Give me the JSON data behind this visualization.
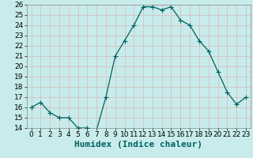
{
  "x": [
    0,
    1,
    2,
    3,
    4,
    5,
    6,
    7,
    8,
    9,
    10,
    11,
    12,
    13,
    14,
    15,
    16,
    17,
    18,
    19,
    20,
    21,
    22,
    23
  ],
  "y": [
    16,
    16.5,
    15.5,
    15,
    15,
    14,
    14,
    13.8,
    17,
    21,
    22.5,
    24,
    25.8,
    25.8,
    25.5,
    25.8,
    24.5,
    24,
    22.5,
    21.5,
    19.5,
    17.5,
    16.3,
    17
  ],
  "line_color": "#006060",
  "marker_color": "#006060",
  "bg_color": "#c8ecec",
  "grid_color": "#d8b8b8",
  "xlabel": "Humidex (Indice chaleur)",
  "ylim": [
    14,
    26
  ],
  "xlim": [
    -0.5,
    23.5
  ],
  "yticks": [
    14,
    15,
    16,
    17,
    18,
    19,
    20,
    21,
    22,
    23,
    24,
    25,
    26
  ],
  "xticks": [
    0,
    1,
    2,
    3,
    4,
    5,
    6,
    7,
    8,
    9,
    10,
    11,
    12,
    13,
    14,
    15,
    16,
    17,
    18,
    19,
    20,
    21,
    22,
    23
  ],
  "tick_fontsize": 6.5,
  "xlabel_fontsize": 8,
  "marker_size": 2.5,
  "line_width": 0.9
}
